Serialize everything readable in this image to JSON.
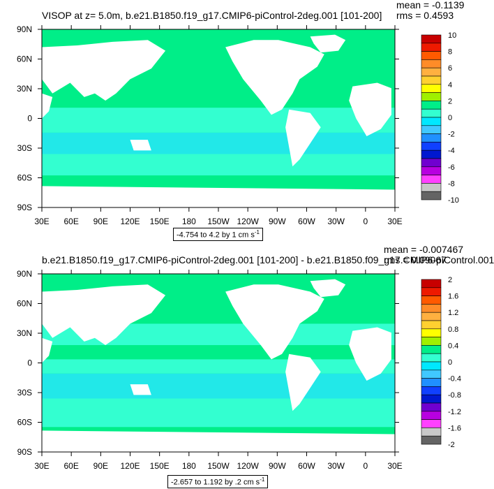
{
  "colors": {
    "sea_main": "#00ee88",
    "sea_low": "#33ffd0",
    "sea_lower": "#22e8e8",
    "land": "#ffffff"
  },
  "chart_data": [
    {
      "type": "heatmap",
      "title": "VISOP at z=    5.0m, b.e21.B1850.f19_g17.CMIP6-piControl-2deg.001 [101-200]",
      "stats": {
        "mean": "mean = -0.1139",
        "rms": "rms = 0.4593"
      },
      "range_text": "-4.754 to 4.2 by 1 cm s",
      "range_unit_exp": "-1",
      "x_ticks": [
        "30E",
        "60E",
        "90E",
        "120E",
        "150E",
        "180",
        "150W",
        "120W",
        "90W",
        "60W",
        "30W",
        "0",
        "30E"
      ],
      "y_ticks": [
        "90N",
        "60N",
        "30N",
        "0",
        "30S",
        "60S",
        "90S"
      ],
      "colorbar_labels": [
        "10",
        "8",
        "6",
        "4",
        "2",
        "0",
        "-2",
        "-4",
        "-6",
        "-8",
        "-10"
      ],
      "colorbar_colors": [
        "#c80000",
        "#ee1a00",
        "#ff5a00",
        "#ff8c28",
        "#ffb040",
        "#ffd030",
        "#ffff00",
        "#a0f000",
        "#00ee88",
        "#33ffd0",
        "#00e8ff",
        "#40c8ff",
        "#2090ff",
        "#1040ff",
        "#0018d0",
        "#7000d0",
        "#b800e0",
        "#ff40ff",
        "#c8c8c8",
        "#646464"
      ]
    },
    {
      "type": "heatmap",
      "title": "b.e21.B1850.f19_g17.CMIP6-piControl-2deg.001 [101-200] - b.e21.B1850.f09_g17.CMIP6-piControl.001",
      "stats": {
        "mean": "mean = -0.007467",
        "rms": "rms = 0.09067"
      },
      "range_text": "-2.657 to 1.192 by .2 cm s",
      "range_unit_exp": "-1",
      "x_ticks": [
        "30E",
        "60E",
        "90E",
        "120E",
        "150E",
        "180",
        "150W",
        "120W",
        "90W",
        "60W",
        "30W",
        "0",
        "30E"
      ],
      "y_ticks": [
        "90N",
        "60N",
        "30N",
        "0",
        "30S",
        "60S",
        "90S"
      ],
      "colorbar_labels": [
        "2",
        "1.6",
        "1.2",
        "0.8",
        "0.4",
        "0",
        "-0.4",
        "-0.8",
        "-1.2",
        "-1.6",
        "-2"
      ],
      "colorbar_colors": [
        "#c80000",
        "#ee1a00",
        "#ff5a00",
        "#ff8c28",
        "#ffb040",
        "#ffd030",
        "#ffff00",
        "#a0f000",
        "#00ee88",
        "#33ffd0",
        "#00e8ff",
        "#40c8ff",
        "#2090ff",
        "#1040ff",
        "#0018d0",
        "#7000d0",
        "#b800e0",
        "#ff40ff",
        "#c8c8c8",
        "#646464"
      ]
    }
  ]
}
